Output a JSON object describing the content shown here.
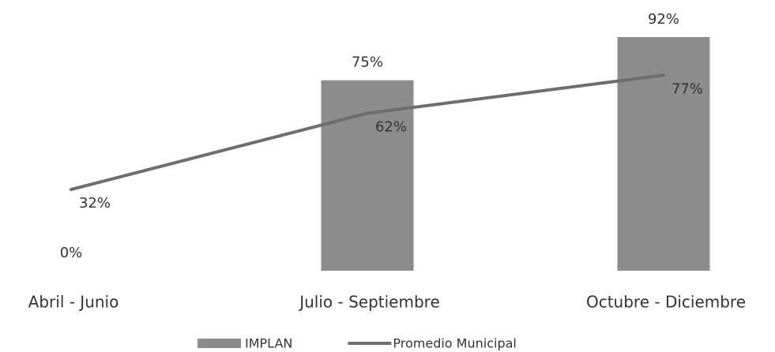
{
  "chart_data": {
    "type": "bar",
    "categories": [
      "Abril - Junio",
      "Julio - Septiembre",
      "Octubre - Diciembre"
    ],
    "series": [
      {
        "name": "IMPLAN",
        "type": "bar",
        "color": "#8c8c8c",
        "values": [
          0,
          75,
          92
        ],
        "value_labels": [
          "0%",
          "75%",
          "92%"
        ]
      },
      {
        "name": "Promedio Municipal",
        "type": "line",
        "color": "#6e6e6e",
        "values": [
          32,
          62,
          77
        ],
        "value_labels": [
          "32%",
          "62%",
          "77%"
        ]
      }
    ],
    "legend": "bottom"
  }
}
